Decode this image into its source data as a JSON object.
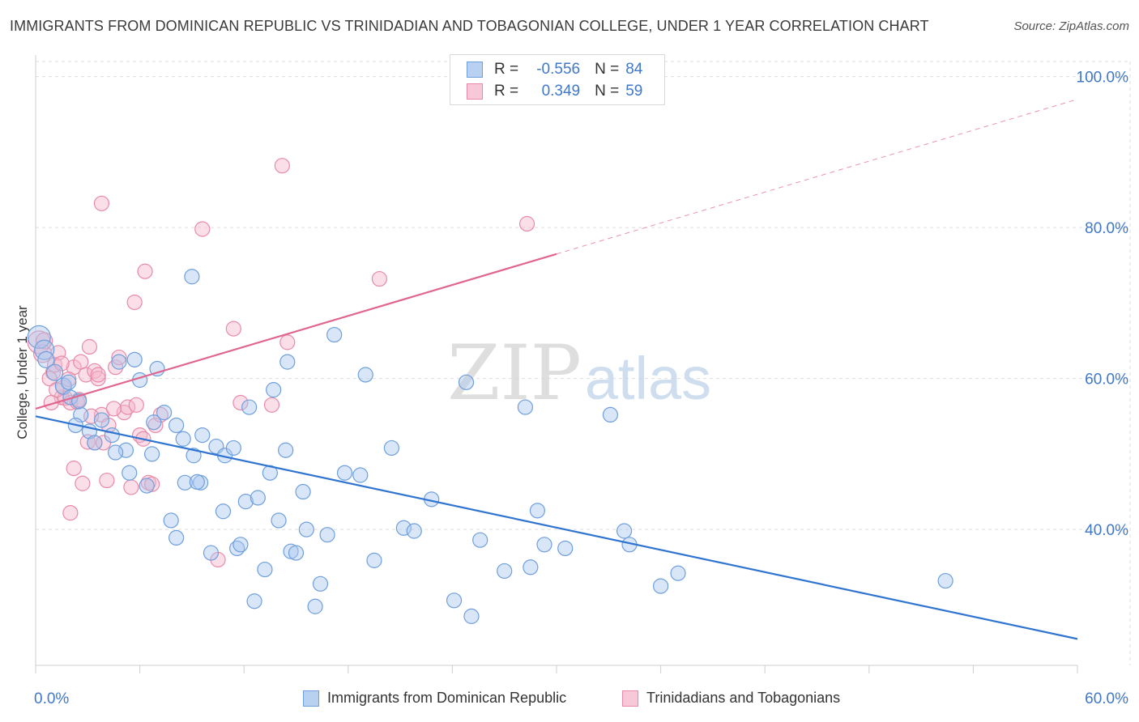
{
  "header": {
    "title": "IMMIGRANTS FROM DOMINICAN REPUBLIC VS TRINIDADIAN AND TOBAGONIAN COLLEGE, UNDER 1 YEAR CORRELATION CHART",
    "source": "Source: ZipAtlas.com"
  },
  "watermark": {
    "zip": "ZIP",
    "atlas": "atlas"
  },
  "colors": {
    "blue": "#a9c7ef",
    "blue_stroke": "#6f9fdc",
    "blue_line": "#2f74d0",
    "pink": "#f5b7cb",
    "pink_stroke": "#e88aa8",
    "pink_line": "#e0658f",
    "axis_text": "#3f78c9",
    "grid": "#dedede"
  },
  "stats": {
    "blue": {
      "r_label": "R =",
      "r": "-0.556",
      "n_label": "N =",
      "n": "84"
    },
    "pink": {
      "r_label": "R =",
      "r": "0.349",
      "n_label": "N =",
      "n": "59"
    }
  },
  "chart_data": {
    "type": "scatter",
    "xlabel": "",
    "ylabel": "College, Under 1 year",
    "xlim": [
      0,
      60
    ],
    "ylim": [
      22,
      102
    ],
    "x_tick_labels": [
      {
        "value": 0,
        "label": "0.0%"
      },
      {
        "value": 60,
        "label": "60.0%"
      }
    ],
    "y_tick_labels": [
      {
        "value": 40,
        "label": "40.0%"
      },
      {
        "value": 60,
        "label": "60.0%"
      },
      {
        "value": 80,
        "label": "80.0%"
      },
      {
        "value": 100,
        "label": "100.0%"
      }
    ],
    "grid": true,
    "legend_position": "bottom",
    "series": [
      {
        "name": "Immigrants from Dominican Republic",
        "color": "blue",
        "trend": {
          "x": [
            0,
            60
          ],
          "y": [
            55.0,
            25.5
          ],
          "dashed_from": null
        },
        "points": [
          [
            0.2,
            65.5,
            14
          ],
          [
            0.5,
            63.8,
            12
          ],
          [
            0.6,
            62.5,
            10
          ],
          [
            1.1,
            60.8,
            10
          ],
          [
            1.6,
            59.0,
            10
          ],
          [
            2.0,
            57.5,
            9
          ],
          [
            2.6,
            55.2,
            9
          ],
          [
            3.1,
            53.0,
            9
          ],
          [
            2.3,
            53.8,
            9
          ],
          [
            3.4,
            51.5,
            9
          ],
          [
            4.4,
            52.5,
            9
          ],
          [
            5.2,
            50.5,
            9
          ],
          [
            4.8,
            62.2,
            9
          ],
          [
            5.7,
            62.5,
            9
          ],
          [
            6.0,
            59.8,
            9
          ],
          [
            7.0,
            61.3,
            9
          ],
          [
            6.8,
            54.2,
            9
          ],
          [
            7.4,
            55.5,
            9
          ],
          [
            8.1,
            53.8,
            9
          ],
          [
            5.4,
            47.5,
            9
          ],
          [
            6.4,
            45.8,
            9
          ],
          [
            6.7,
            50.0,
            9
          ],
          [
            7.8,
            41.2,
            9
          ],
          [
            8.1,
            38.9,
            9
          ],
          [
            9.1,
            49.8,
            9
          ],
          [
            8.6,
            46.2,
            9
          ],
          [
            9.5,
            46.2,
            9
          ],
          [
            9.0,
            73.5,
            9
          ],
          [
            9.3,
            46.3,
            9
          ],
          [
            9.6,
            52.5,
            9
          ],
          [
            10.4,
            51.0,
            9
          ],
          [
            10.1,
            36.9,
            9
          ],
          [
            10.8,
            42.4,
            9
          ],
          [
            10.9,
            49.8,
            9
          ],
          [
            11.6,
            37.5,
            9
          ],
          [
            11.4,
            50.8,
            9
          ],
          [
            11.8,
            38.0,
            9
          ],
          [
            12.3,
            56.2,
            9
          ],
          [
            12.1,
            43.7,
            9
          ],
          [
            12.8,
            44.2,
            9
          ],
          [
            12.6,
            30.5,
            9
          ],
          [
            13.2,
            34.7,
            9
          ],
          [
            13.7,
            58.5,
            9
          ],
          [
            14.0,
            41.2,
            9
          ],
          [
            14.4,
            50.5,
            9
          ],
          [
            14.5,
            62.2,
            9
          ],
          [
            14.7,
            37.1,
            9
          ],
          [
            15.0,
            36.9,
            9
          ],
          [
            15.4,
            45.0,
            9
          ],
          [
            15.6,
            40.0,
            9
          ],
          [
            16.1,
            29.8,
            9
          ],
          [
            16.4,
            32.8,
            9
          ],
          [
            16.8,
            39.3,
            9
          ],
          [
            17.2,
            65.8,
            9
          ],
          [
            17.8,
            47.5,
            9
          ],
          [
            18.7,
            47.2,
            9
          ],
          [
            19.0,
            60.5,
            9
          ],
          [
            19.5,
            35.9,
            9
          ],
          [
            20.5,
            50.8,
            9
          ],
          [
            21.2,
            40.2,
            9
          ],
          [
            21.8,
            39.8,
            9
          ],
          [
            22.8,
            44.0,
            9
          ],
          [
            24.1,
            30.6,
            9
          ],
          [
            24.8,
            59.5,
            9
          ],
          [
            25.1,
            28.5,
            9
          ],
          [
            25.6,
            38.6,
            9
          ],
          [
            27.0,
            34.5,
            9
          ],
          [
            28.2,
            56.2,
            9
          ],
          [
            28.5,
            35.0,
            9
          ],
          [
            28.9,
            42.5,
            9
          ],
          [
            29.3,
            38.0,
            9
          ],
          [
            30.5,
            37.5,
            9
          ],
          [
            33.1,
            55.2,
            9
          ],
          [
            33.9,
            39.8,
            9
          ],
          [
            34.2,
            38.0,
            9
          ],
          [
            36.0,
            32.5,
            9
          ],
          [
            37.0,
            34.2,
            9
          ],
          [
            52.4,
            33.2,
            9
          ],
          [
            2.5,
            57.0,
            9
          ],
          [
            4.6,
            50.2,
            9
          ],
          [
            8.5,
            52.0,
            9
          ],
          [
            3.8,
            54.5,
            9
          ],
          [
            1.9,
            59.5,
            9
          ],
          [
            13.5,
            47.5,
            9
          ]
        ]
      },
      {
        "name": "Trinidadians and Tobagonians",
        "color": "pink",
        "trend": {
          "x": [
            0,
            60
          ],
          "y": [
            56.0,
            97.0
          ],
          "dashed_from": 30
        },
        "points": [
          [
            0.2,
            64.8,
            14
          ],
          [
            0.4,
            63.3,
            11
          ],
          [
            0.5,
            65.0,
            10
          ],
          [
            1.0,
            60.8,
            9
          ],
          [
            1.3,
            63.4,
            9
          ],
          [
            1.5,
            57.5,
            9
          ],
          [
            1.7,
            57.4,
            9
          ],
          [
            1.6,
            58.8,
            9
          ],
          [
            2.0,
            56.8,
            9
          ],
          [
            2.2,
            61.5,
            9
          ],
          [
            2.4,
            56.9,
            9
          ],
          [
            1.9,
            59.9,
            9
          ],
          [
            2.6,
            62.2,
            9
          ],
          [
            2.9,
            60.5,
            9
          ],
          [
            3.1,
            64.2,
            9
          ],
          [
            3.4,
            61.0,
            9
          ],
          [
            3.6,
            60.0,
            9
          ],
          [
            3.8,
            55.2,
            9
          ],
          [
            2.2,
            48.1,
            9
          ],
          [
            2.7,
            46.1,
            9
          ],
          [
            3.0,
            51.6,
            9
          ],
          [
            3.4,
            51.5,
            9
          ],
          [
            3.9,
            51.5,
            9
          ],
          [
            4.2,
            53.8,
            9
          ],
          [
            3.8,
            83.2,
            9
          ],
          [
            4.1,
            46.5,
            9
          ],
          [
            4.6,
            61.5,
            9
          ],
          [
            4.8,
            62.8,
            9
          ],
          [
            5.1,
            55.5,
            9
          ],
          [
            5.3,
            56.2,
            9
          ],
          [
            5.5,
            45.6,
            9
          ],
          [
            5.7,
            70.1,
            9
          ],
          [
            5.8,
            56.5,
            9
          ],
          [
            6.0,
            52.5,
            9
          ],
          [
            6.3,
            74.2,
            9
          ],
          [
            6.5,
            46.2,
            9
          ],
          [
            6.7,
            46.0,
            9
          ],
          [
            6.9,
            53.8,
            9
          ],
          [
            7.2,
            55.2,
            9
          ],
          [
            9.6,
            79.8,
            9
          ],
          [
            10.5,
            36.0,
            9
          ],
          [
            11.4,
            66.6,
            9
          ],
          [
            11.8,
            56.8,
            9
          ],
          [
            13.6,
            56.5,
            9
          ],
          [
            14.2,
            88.2,
            9
          ],
          [
            14.5,
            64.8,
            9
          ],
          [
            19.8,
            73.2,
            9
          ],
          [
            28.3,
            80.5,
            9
          ],
          [
            1.1,
            61.8,
            9
          ],
          [
            0.8,
            60.0,
            9
          ],
          [
            1.2,
            58.5,
            9
          ],
          [
            4.5,
            56.0,
            9
          ],
          [
            3.2,
            55.0,
            9
          ],
          [
            2.0,
            42.2,
            9
          ],
          [
            6.2,
            52.0,
            9
          ],
          [
            2.5,
            57.2,
            9
          ],
          [
            0.9,
            56.8,
            9
          ],
          [
            1.5,
            62.0,
            9
          ],
          [
            3.6,
            60.5,
            9
          ]
        ]
      }
    ]
  }
}
